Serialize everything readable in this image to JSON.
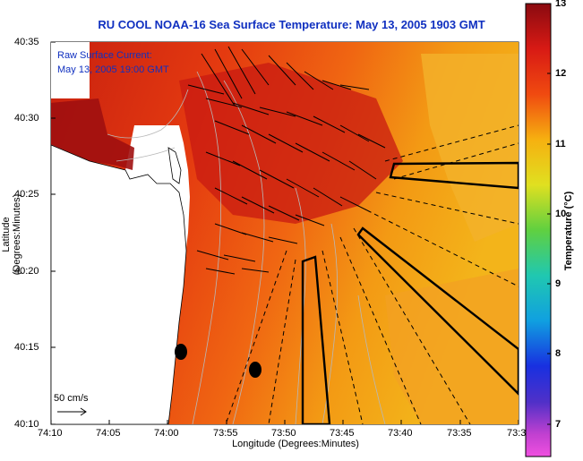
{
  "title": "RU COOL  NOAA-16  Sea Surface Temperature:  May 13, 2005 1903 GMT",
  "inset": {
    "line1": "Raw Surface Current:",
    "line2": "May 13, 2005 19:00 GMT"
  },
  "axes": {
    "ylabel": "Latitude (Degrees:Minutes)",
    "xlabel": "Longitude (Degrees:Minutes)",
    "y_ticks": [
      "40:35",
      "40:30",
      "40:25",
      "40:20",
      "40:15",
      "40:10"
    ],
    "x_ticks": [
      "74:10",
      "74:05",
      "74:00",
      "73:55",
      "73:50",
      "73:45",
      "73:40",
      "73:35",
      "73:3"
    ]
  },
  "colorbar": {
    "label": "Temperature (°C)",
    "ticks": [
      "13",
      "12",
      "11",
      "10",
      "9",
      "8",
      "7"
    ],
    "min": 6.5,
    "max": 13
  },
  "scale": {
    "label": "50 cm/s"
  },
  "colors": {
    "title": "#1030c0",
    "land": "#ffffff",
    "warm": "#b01818",
    "mid": "#e84010",
    "cool": "#f0a010"
  }
}
